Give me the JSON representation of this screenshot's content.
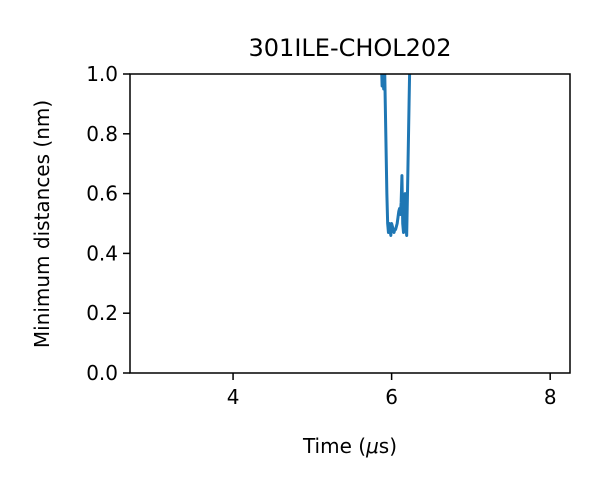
{
  "chart_data": {
    "type": "line",
    "title": "301ILE-CHOL202",
    "xlabel_prefix": "Time (",
    "xlabel_unit": "μ",
    "xlabel_suffix": "s)",
    "ylabel": "Minimum distances (nm)",
    "xlim": [
      2.7,
      8.25
    ],
    "ylim": [
      0,
      1.0
    ],
    "xticks": [
      4,
      6,
      8
    ],
    "xtick_labels": [
      "4",
      "6",
      "8"
    ],
    "yticks": [
      0,
      0.2,
      0.4,
      0.6,
      0.8,
      1.0
    ],
    "ytick_labels": [
      "0.0",
      "0.2",
      "0.4",
      "0.6",
      "0.8",
      "1.0"
    ],
    "grid": false,
    "series": [
      {
        "name": "min-distance",
        "color": "#1f77b4",
        "x": [
          5.87,
          5.88,
          5.89,
          5.9,
          5.91,
          5.92,
          5.93,
          5.94,
          5.95,
          5.96,
          5.97,
          5.98,
          5.99,
          6.0,
          6.01,
          6.02,
          6.03,
          6.04,
          6.05,
          6.06,
          6.07,
          6.08,
          6.09,
          6.1,
          6.11,
          6.12,
          6.13,
          6.14,
          6.15,
          6.16,
          6.17,
          6.18,
          6.19,
          6.2,
          6.21,
          6.22,
          6.23,
          6.24,
          6.25
        ],
        "values": [
          1.05,
          0.96,
          1.0,
          0.95,
          1.05,
          0.9,
          0.75,
          0.6,
          0.5,
          0.47,
          0.5,
          0.48,
          0.46,
          0.5,
          0.49,
          0.48,
          0.47,
          0.48,
          0.48,
          0.49,
          0.5,
          0.52,
          0.54,
          0.55,
          0.53,
          0.57,
          0.66,
          0.5,
          0.47,
          0.56,
          0.6,
          0.5,
          0.46,
          0.6,
          0.75,
          0.9,
          1.05,
          1.05,
          1.05
        ]
      }
    ]
  }
}
